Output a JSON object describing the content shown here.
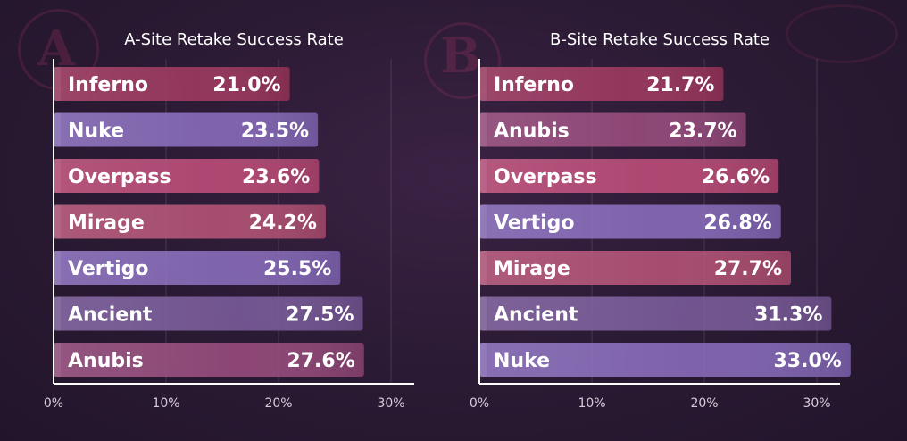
{
  "chart_data": [
    {
      "type": "bar",
      "orientation": "horizontal",
      "title": "A-Site Retake Success Rate",
      "categories": [
        "Inferno",
        "Nuke",
        "Overpass",
        "Mirage",
        "Vertigo",
        "Ancient",
        "Anubis"
      ],
      "values": [
        21.0,
        23.5,
        23.6,
        24.2,
        25.5,
        27.5,
        27.6
      ],
      "value_labels": [
        "21.0%",
        "23.5%",
        "23.6%",
        "24.2%",
        "25.5%",
        "27.5%",
        "27.6%"
      ],
      "xlim": [
        0,
        30
      ],
      "x_ticks": [
        "0%",
        "10%",
        "20%",
        "30%"
      ],
      "grid": true,
      "colors": [
        "#a2365f",
        "#8a6cc0",
        "#c24a78",
        "#b85175",
        "#8a6cc0",
        "#7a5a9c",
        "#9a4a7e"
      ]
    },
    {
      "type": "bar",
      "orientation": "horizontal",
      "title": "B-Site Retake Success Rate",
      "categories": [
        "Inferno",
        "Anubis",
        "Overpass",
        "Vertigo",
        "Mirage",
        "Ancient",
        "Nuke"
      ],
      "values": [
        21.7,
        23.7,
        26.6,
        26.8,
        27.7,
        31.3,
        33.0
      ],
      "value_labels": [
        "21.7%",
        "23.7%",
        "26.6%",
        "26.8%",
        "27.7%",
        "31.3%",
        "33.0%"
      ],
      "xlim": [
        0,
        30
      ],
      "x_ticks": [
        "0%",
        "10%",
        "20%",
        "30%"
      ],
      "grid": true,
      "colors": [
        "#a2365f",
        "#9a4a7e",
        "#c24a78",
        "#8a6cc0",
        "#b85175",
        "#7a5a9c",
        "#8a6cc0"
      ]
    }
  ],
  "decor": {
    "letter_a": "A",
    "letter_b": "B"
  }
}
